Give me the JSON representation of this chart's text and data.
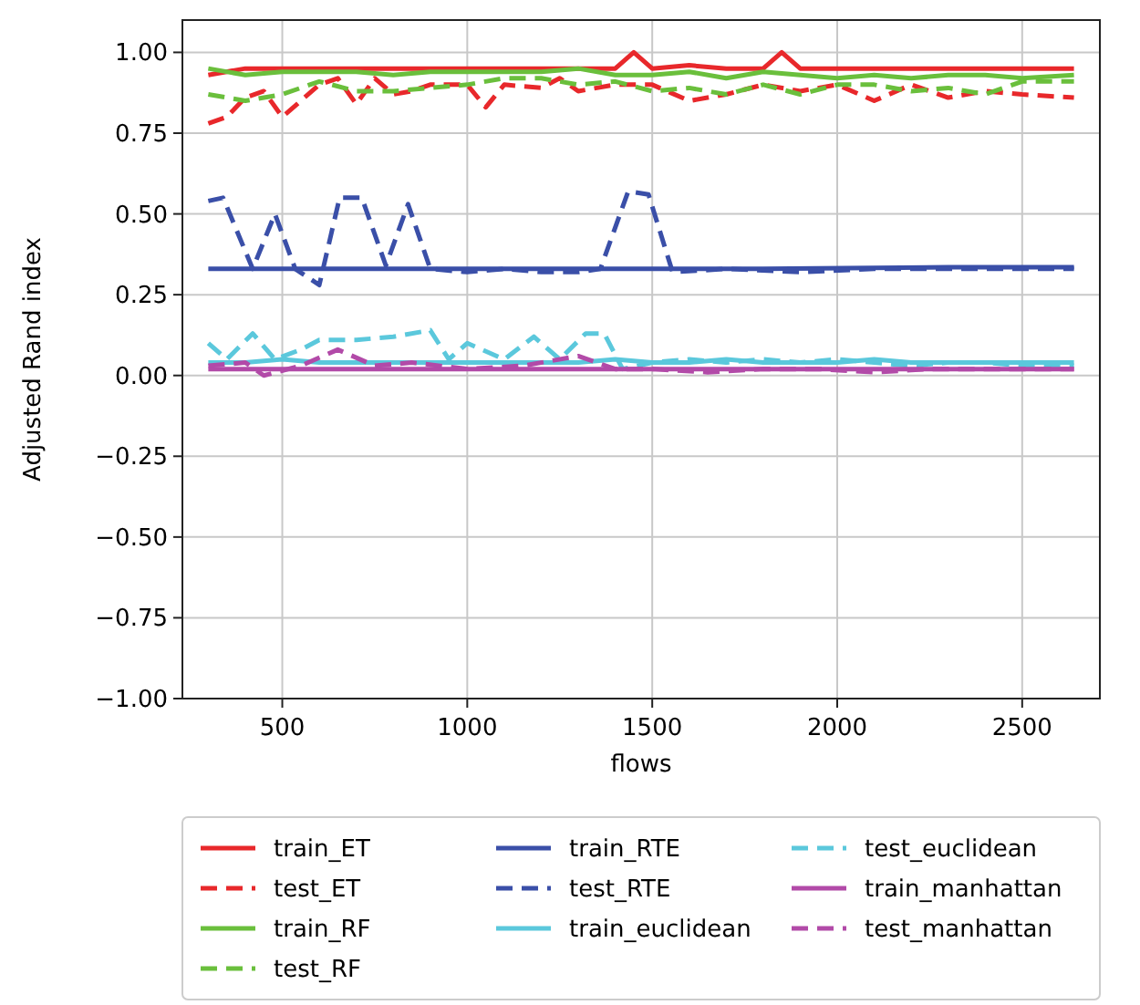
{
  "chart_data": {
    "type": "line",
    "xlabel": "flows",
    "ylabel": "Adjusted Rand index",
    "xlim": [
      230,
      2710
    ],
    "ylim": [
      -1,
      1.1
    ],
    "xticks": [
      500,
      1000,
      1500,
      2000,
      2500
    ],
    "yticks": [
      {
        "value": -1,
        "label": "−1.00"
      },
      {
        "value": -0.75,
        "label": "−0.75"
      },
      {
        "value": -0.5,
        "label": "−0.50"
      },
      {
        "value": -0.25,
        "label": "−0.25"
      },
      {
        "value": 0,
        "label": "0.00"
      },
      {
        "value": 0.25,
        "label": "0.25"
      },
      {
        "value": 0.5,
        "label": "0.50"
      },
      {
        "value": 0.75,
        "label": "0.75"
      },
      {
        "value": 1,
        "label": "1.00"
      }
    ],
    "grid": true,
    "legend": "bottom",
    "line_style": "solid",
    "series": [
      {
        "name": "train_ET",
        "color": "#e8282b",
        "x": [
          300,
          400,
          500,
          600,
          700,
          800,
          900,
          1000,
          1100,
          1200,
          1300,
          1400,
          1450,
          1500,
          1600,
          1700,
          1800,
          1850,
          1900,
          2000,
          2100,
          2200,
          2300,
          2400,
          2500,
          2640
        ],
        "values": [
          0.93,
          0.95,
          0.95,
          0.95,
          0.95,
          0.95,
          0.95,
          0.95,
          0.95,
          0.95,
          0.95,
          0.95,
          1.0,
          0.95,
          0.96,
          0.95,
          0.95,
          1.0,
          0.95,
          0.95,
          0.95,
          0.95,
          0.95,
          0.95,
          0.95,
          0.95
        ]
      },
      {
        "name": "test_ET",
        "color": "#e8282b",
        "line_style": "dashed",
        "x": [
          300,
          350,
          400,
          450,
          500,
          600,
          650,
          700,
          750,
          800,
          850,
          900,
          1000,
          1050,
          1100,
          1200,
          1250,
          1300,
          1400,
          1500,
          1600,
          1700,
          1800,
          1900,
          2000,
          2100,
          2200,
          2300,
          2400,
          2500,
          2640
        ],
        "values": [
          0.78,
          0.8,
          0.86,
          0.88,
          0.8,
          0.9,
          0.92,
          0.84,
          0.92,
          0.87,
          0.88,
          0.9,
          0.9,
          0.83,
          0.9,
          0.89,
          0.92,
          0.88,
          0.9,
          0.9,
          0.85,
          0.87,
          0.9,
          0.88,
          0.9,
          0.85,
          0.9,
          0.86,
          0.88,
          0.87,
          0.86
        ]
      },
      {
        "name": "train_RF",
        "color": "#6abf3c",
        "x": [
          300,
          400,
          500,
          600,
          700,
          800,
          900,
          1000,
          1100,
          1200,
          1300,
          1400,
          1500,
          1600,
          1700,
          1800,
          1900,
          2000,
          2100,
          2200,
          2300,
          2400,
          2500,
          2640
        ],
        "values": [
          0.95,
          0.93,
          0.94,
          0.94,
          0.94,
          0.93,
          0.94,
          0.94,
          0.94,
          0.94,
          0.95,
          0.93,
          0.93,
          0.94,
          0.92,
          0.94,
          0.93,
          0.92,
          0.93,
          0.92,
          0.93,
          0.93,
          0.92,
          0.93
        ]
      },
      {
        "name": "test_RF",
        "color": "#6abf3c",
        "line_style": "dashed",
        "x": [
          300,
          400,
          500,
          600,
          700,
          800,
          900,
          1000,
          1100,
          1200,
          1300,
          1400,
          1500,
          1600,
          1700,
          1800,
          1900,
          2000,
          2100,
          2200,
          2300,
          2400,
          2500,
          2640
        ],
        "values": [
          0.87,
          0.85,
          0.87,
          0.91,
          0.88,
          0.88,
          0.89,
          0.9,
          0.92,
          0.92,
          0.9,
          0.91,
          0.88,
          0.89,
          0.87,
          0.9,
          0.87,
          0.9,
          0.9,
          0.88,
          0.89,
          0.87,
          0.91,
          0.91
        ]
      },
      {
        "name": "train_RTE",
        "color": "#3a4fa8",
        "x": [
          300,
          800,
          1300,
          1800,
          2300,
          2640
        ],
        "values": [
          0.33,
          0.33,
          0.33,
          0.33,
          0.335,
          0.335
        ]
      },
      {
        "name": "test_RTE",
        "color": "#3a4fa8",
        "line_style": "dashed",
        "x": [
          300,
          340,
          420,
          480,
          535,
          600,
          655,
          715,
          780,
          840,
          900,
          1000,
          1100,
          1200,
          1300,
          1360,
          1435,
          1490,
          1555,
          1700,
          1900,
          2100,
          2300,
          2500,
          2640
        ],
        "values": [
          0.54,
          0.55,
          0.33,
          0.5,
          0.33,
          0.28,
          0.55,
          0.55,
          0.34,
          0.53,
          0.33,
          0.32,
          0.33,
          0.32,
          0.32,
          0.33,
          0.57,
          0.56,
          0.32,
          0.33,
          0.32,
          0.33,
          0.33,
          0.33,
          0.33
        ]
      },
      {
        "name": "train_euclidean",
        "color": "#5bc8dc",
        "x": [
          300,
          400,
          500,
          600,
          700,
          800,
          900,
          1000,
          1100,
          1200,
          1300,
          1400,
          1500,
          1600,
          1700,
          1800,
          1900,
          2000,
          2100,
          2200,
          2300,
          2400,
          2500,
          2640
        ],
        "values": [
          0.04,
          0.04,
          0.05,
          0.04,
          0.04,
          0.04,
          0.04,
          0.04,
          0.04,
          0.04,
          0.04,
          0.05,
          0.04,
          0.04,
          0.05,
          0.04,
          0.04,
          0.04,
          0.05,
          0.04,
          0.04,
          0.04,
          0.04,
          0.04
        ]
      },
      {
        "name": "test_euclidean",
        "color": "#5bc8dc",
        "line_style": "dashed",
        "x": [
          300,
          350,
          420,
          480,
          550,
          600,
          700,
          800,
          900,
          950,
          1000,
          1100,
          1180,
          1250,
          1320,
          1370,
          1420,
          1500,
          1600,
          1700,
          1800,
          1900,
          2000,
          2100,
          2200,
          2300,
          2400,
          2500,
          2640
        ],
        "values": [
          0.1,
          0.05,
          0.13,
          0.05,
          0.08,
          0.11,
          0.11,
          0.12,
          0.14,
          0.05,
          0.1,
          0.05,
          0.12,
          0.05,
          0.13,
          0.13,
          0.02,
          0.04,
          0.05,
          0.04,
          0.05,
          0.04,
          0.05,
          0.04,
          0.03,
          0.04,
          0.04,
          0.03,
          0.03
        ]
      },
      {
        "name": "train_manhattan",
        "color": "#b24aa8",
        "x": [
          300,
          600,
          900,
          1200,
          1500,
          1800,
          2100,
          2400,
          2640
        ],
        "values": [
          0.02,
          0.02,
          0.02,
          0.02,
          0.02,
          0.02,
          0.02,
          0.02,
          0.02
        ]
      },
      {
        "name": "test_manhattan",
        "color": "#b24aa8",
        "line_style": "dashed",
        "x": [
          300,
          400,
          450,
          550,
          650,
          750,
          850,
          1000,
          1150,
          1300,
          1400,
          1500,
          1650,
          1800,
          1950,
          2100,
          2250,
          2400,
          2550,
          2640
        ],
        "values": [
          0.03,
          0.04,
          0.0,
          0.03,
          0.08,
          0.03,
          0.04,
          0.02,
          0.03,
          0.06,
          0.02,
          0.02,
          0.01,
          0.02,
          0.02,
          0.01,
          0.02,
          0.02,
          0.02,
          0.02
        ]
      }
    ]
  }
}
